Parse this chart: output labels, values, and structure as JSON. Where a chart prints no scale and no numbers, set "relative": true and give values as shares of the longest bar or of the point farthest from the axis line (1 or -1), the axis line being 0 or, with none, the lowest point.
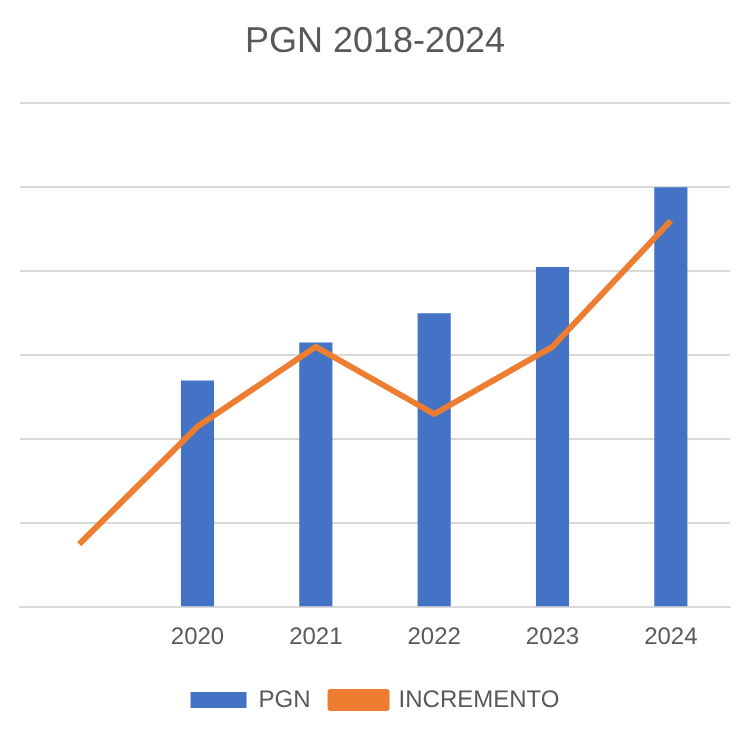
{
  "chart_data": {
    "type": "bar",
    "title": "PGN 2018-2024",
    "relative": true,
    "grid": "y",
    "legend": "bottom",
    "categories": [
      null,
      "2020",
      "2021",
      "2022",
      "2023",
      "2024"
    ],
    "series": [
      {
        "name": "PGN",
        "color": "#4472c4",
        "values": [
          null,
          0.54,
          0.63,
          0.7,
          0.81,
          1
        ]
      },
      {
        "name": "INCREMENTO",
        "type": "line",
        "color": "#ed7d31",
        "values": [
          0.15,
          0.43,
          0.62,
          0.46,
          0.62,
          0.92
        ]
      }
    ]
  }
}
